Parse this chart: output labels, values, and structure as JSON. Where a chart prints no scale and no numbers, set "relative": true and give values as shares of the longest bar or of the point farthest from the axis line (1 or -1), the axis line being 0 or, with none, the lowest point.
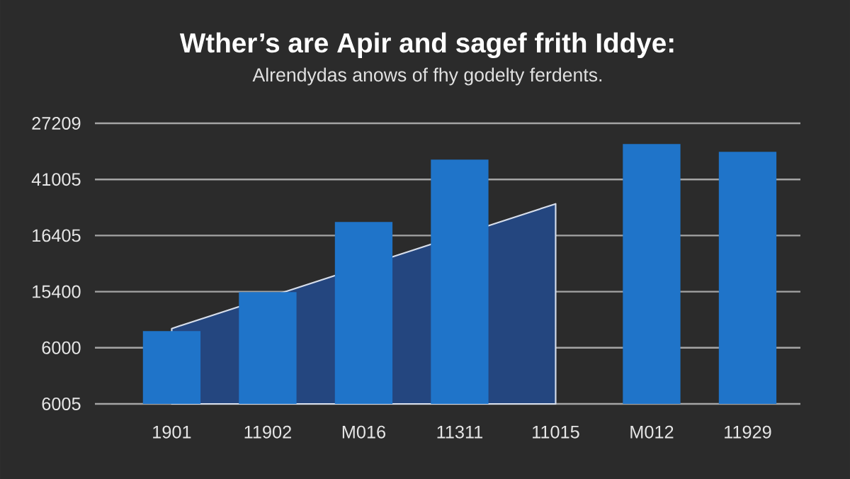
{
  "chart_data": {
    "type": "bar",
    "title": "Wther’s are Apir and sagef frith Iddye:",
    "subtitle": "Alrendydas anows of fhy godelty ferdents.",
    "categories": [
      "1901",
      "11902",
      "M016",
      "11311",
      "11015",
      "M012",
      "11929"
    ],
    "relative": true,
    "grid": "y",
    "annotations": [
      "27209",
      "41005",
      "16405",
      "15400",
      "6000",
      "6005"
    ],
    "series": [
      {
        "type": "area",
        "color": "#24467f",
        "values": [
          0.29,
          null,
          null,
          null,
          0.77,
          null,
          null
        ]
      },
      {
        "color": "#1f74c9",
        "values": [
          0.28,
          0.43,
          0.7,
          0.94,
          null,
          1,
          0.97
        ]
      }
    ]
  }
}
